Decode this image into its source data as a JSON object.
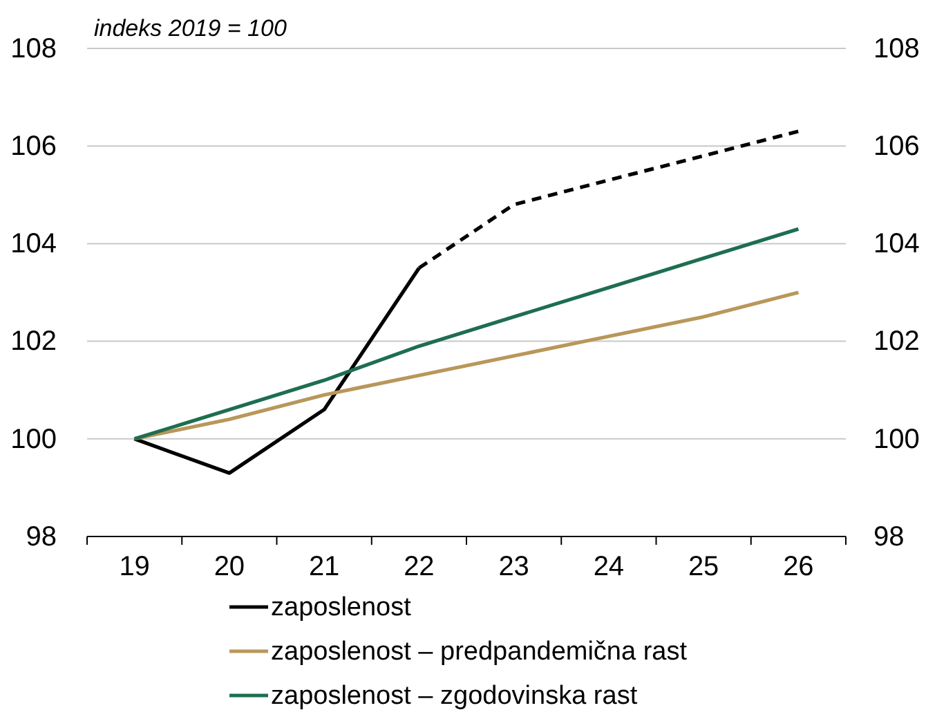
{
  "chart_data": {
    "type": "line",
    "annotations": [
      "indeks 2019 = 100"
    ],
    "categories": [
      "19",
      "20",
      "21",
      "22",
      "23",
      "24",
      "25",
      "26"
    ],
    "series": [
      {
        "name": "zaposlenost",
        "color": "#000000",
        "line_style": "solid",
        "values": [
          100,
          99.3,
          100.6,
          103.5,
          null,
          null,
          null,
          null
        ]
      },
      {
        "color": "#000000",
        "line_style": "dashed",
        "values": [
          null,
          null,
          null,
          103.5,
          104.8,
          105.3,
          105.8,
          106.3
        ]
      },
      {
        "name": "zaposlenost – predpandemična rast",
        "color": "#b8975a",
        "line_style": "solid",
        "values": [
          100,
          100.4,
          100.9,
          101.3,
          101.7,
          102.1,
          102.5,
          103.0
        ]
      },
      {
        "name": "zaposlenost – zgodovinska rast",
        "color": "#1e6e50",
        "line_style": "solid",
        "values": [
          100,
          100.6,
          101.2,
          101.9,
          102.5,
          103.1,
          103.7,
          104.3
        ]
      }
    ],
    "ylim": [
      98,
      108
    ],
    "yticks": [
      98,
      100,
      102,
      104,
      106,
      108
    ],
    "y2lim": [
      98,
      108
    ],
    "y2ticks": [
      98,
      100,
      102,
      104,
      106,
      108
    ],
    "grid": "y",
    "legend": "bottom"
  }
}
